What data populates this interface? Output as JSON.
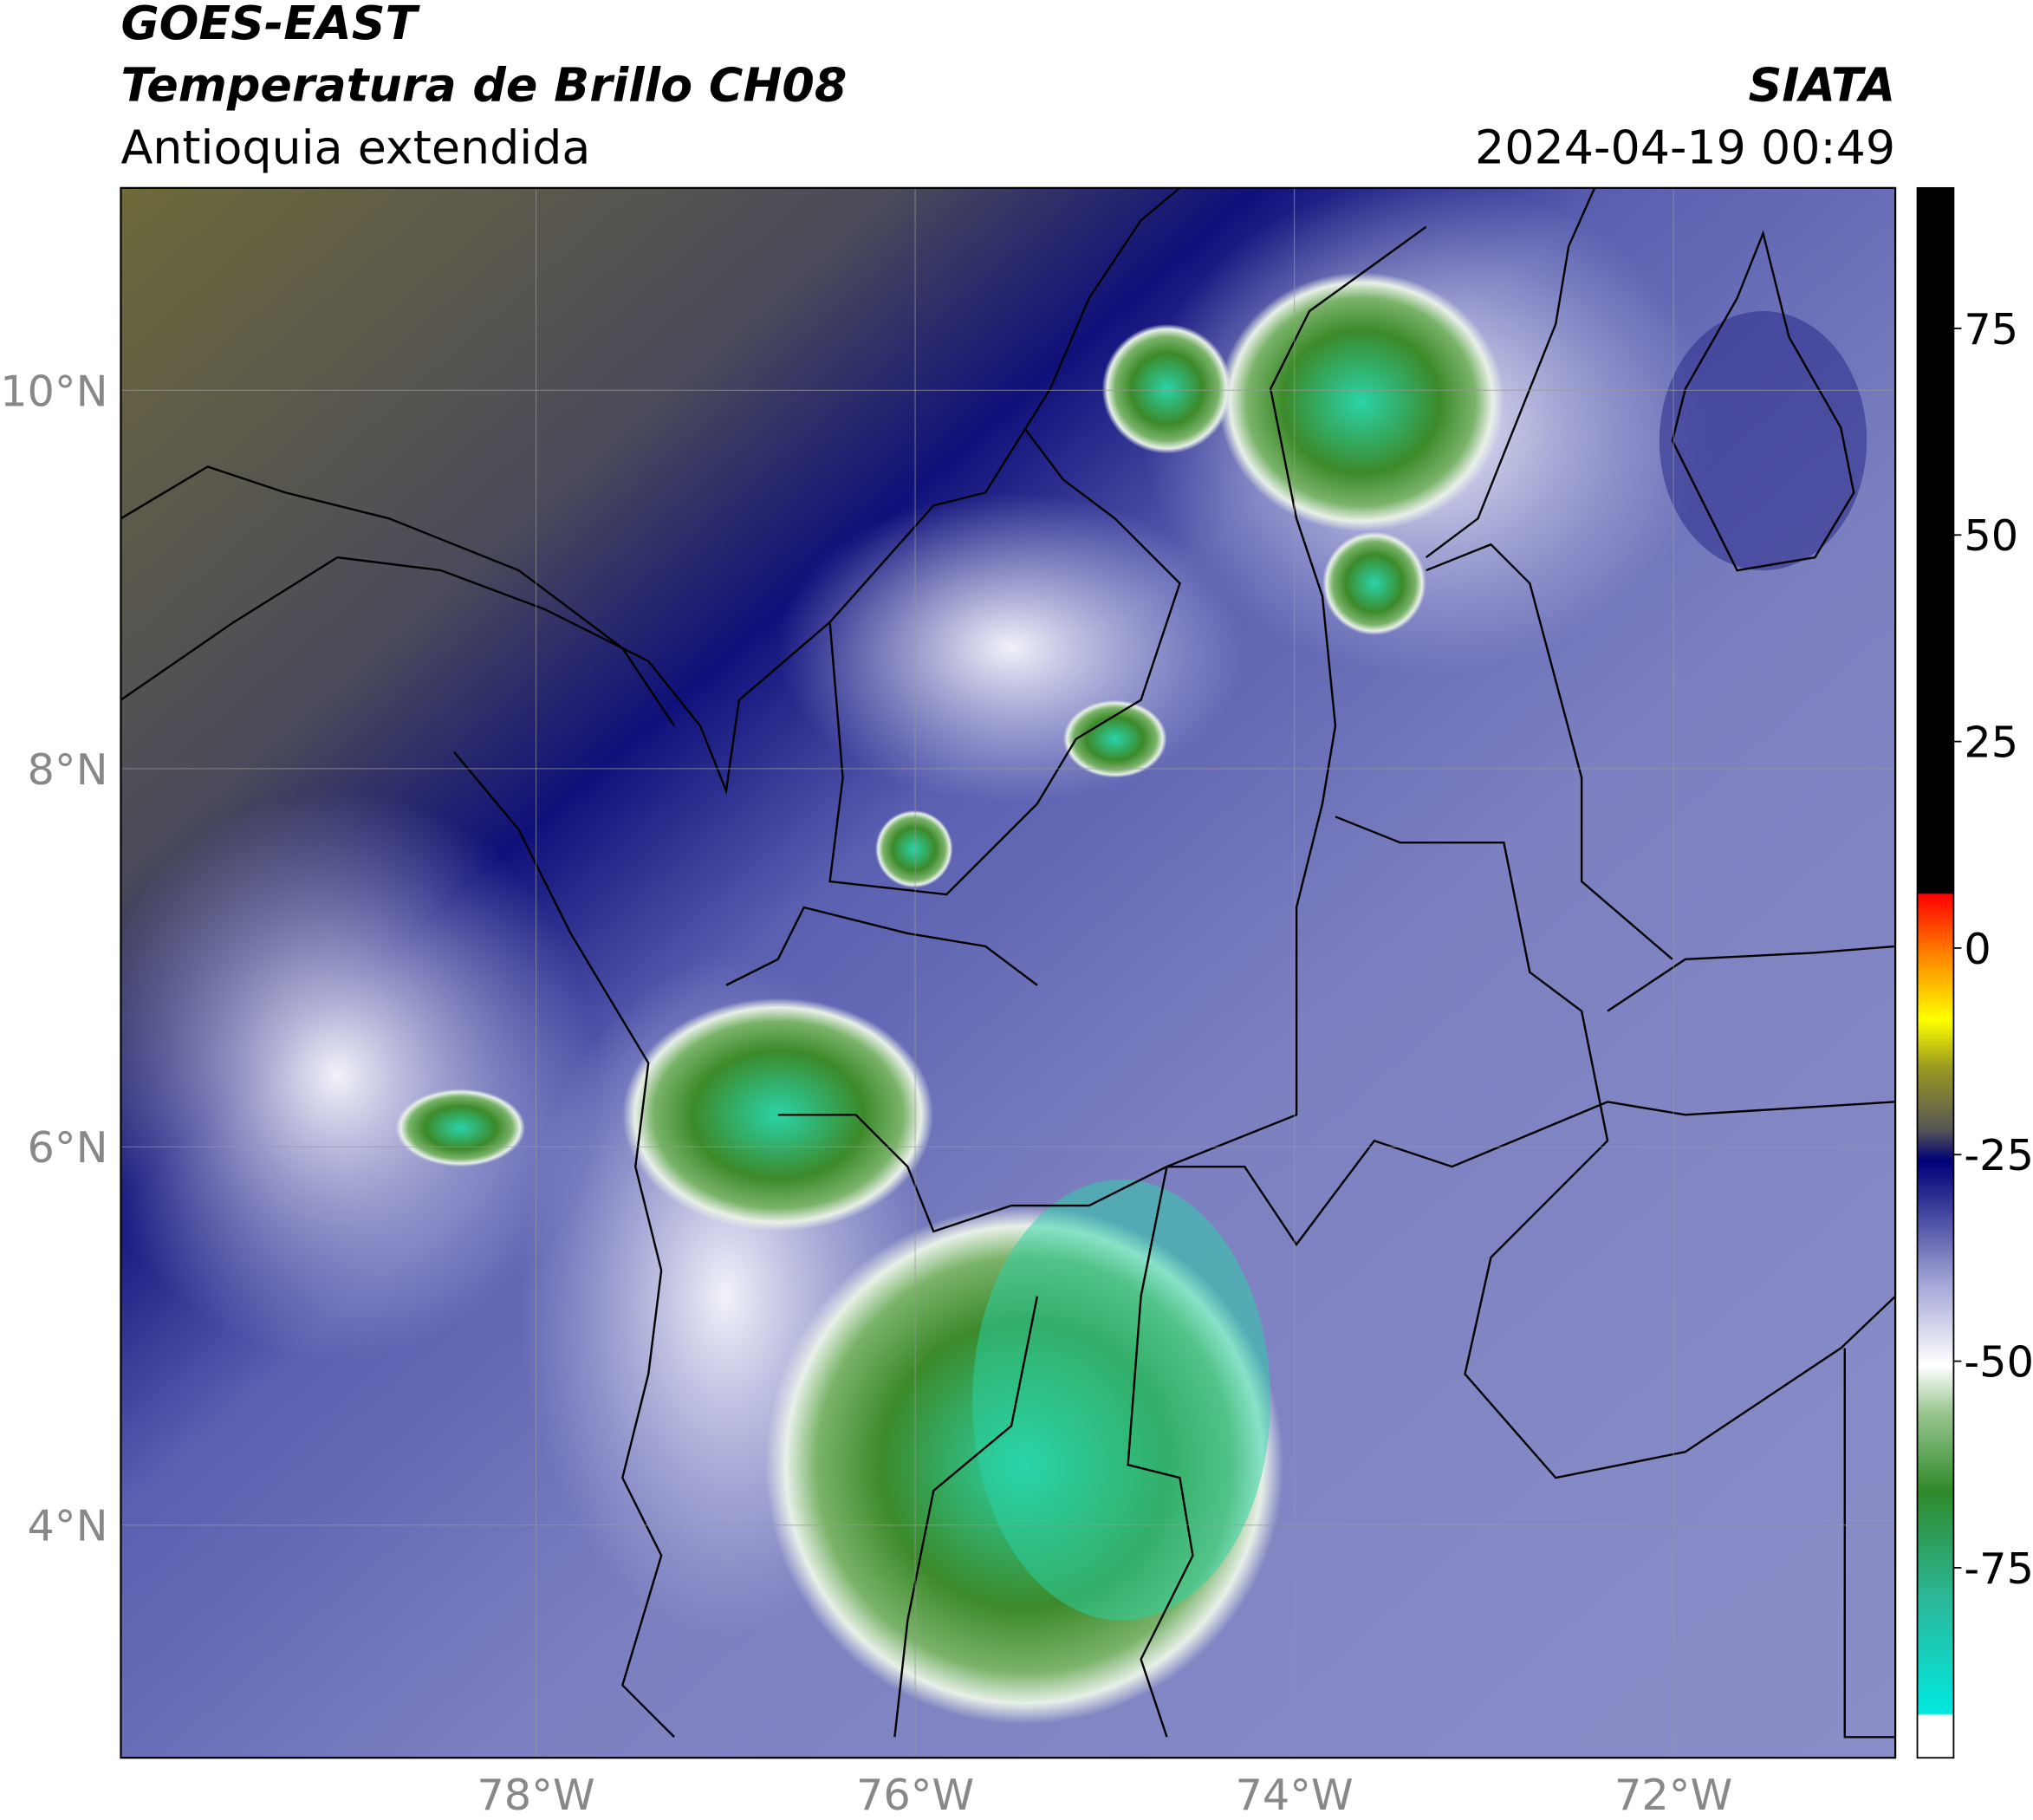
{
  "header": {
    "title": "GOES-EAST",
    "subtitle": "Temperatura de Brillo CH08",
    "region": "Antioquia extendida",
    "source": "SIATA",
    "timestamp": "2024-04-19 00:49"
  },
  "map": {
    "xlim": [
      -80.19,
      -70.83
    ],
    "ylim": [
      2.77,
      11.07
    ],
    "xticks": [
      {
        "value": -78,
        "label": "78°W"
      },
      {
        "value": -76,
        "label": "76°W"
      },
      {
        "value": -74,
        "label": "74°W"
      },
      {
        "value": -72,
        "label": "72°W"
      }
    ],
    "yticks": [
      {
        "value": 4,
        "label": "4°N"
      },
      {
        "value": 6,
        "label": "6°N"
      },
      {
        "value": 8,
        "label": "8°N"
      },
      {
        "value": 10,
        "label": "10°N"
      }
    ],
    "grid": true
  },
  "colorbar": {
    "lim": [
      -98,
      92
    ],
    "ticks": [
      -75,
      -50,
      -25,
      0,
      25,
      50,
      75
    ]
  }
}
